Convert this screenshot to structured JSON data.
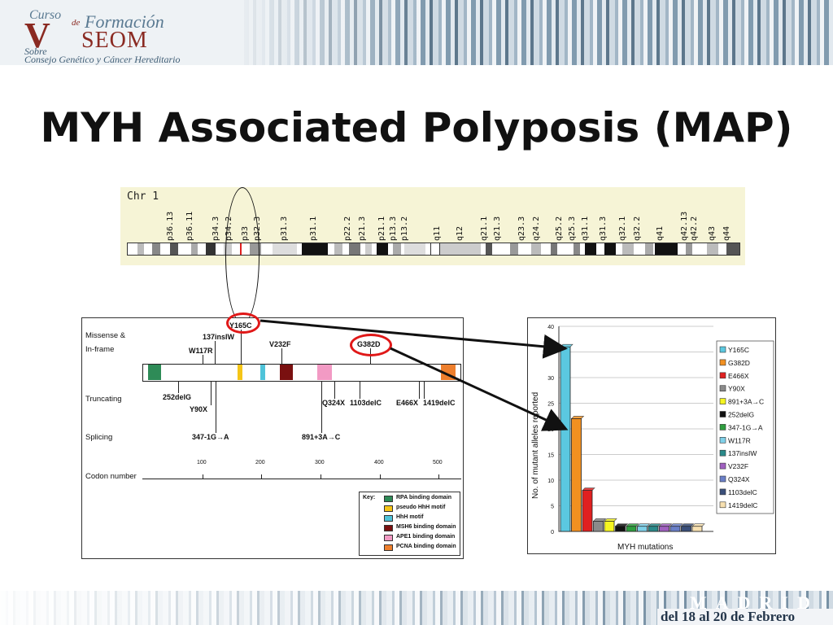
{
  "header": {
    "logo_curso": "Curso",
    "logo_de": "de",
    "logo_formacion": "Formación",
    "logo_seom": "SEOM",
    "logo_sobre": "Sobre",
    "logo_subtitle": "Consejo Genético y Cáncer Hereditario",
    "colors": {
      "logo_red": "#8a2a22",
      "logo_blue": "#5a7a92"
    }
  },
  "slide": {
    "title": "MYH Associated Polyposis (MAP)"
  },
  "chromosome": {
    "label": "Chr 1",
    "bands": [
      "p36.13",
      "p36.11",
      "p34.3",
      "p34.2",
      "p33",
      "p32.3",
      "p31.3",
      "p31.1",
      "p22.2",
      "p21.3",
      "p21.1",
      "p13.3",
      "p13.2",
      "q11",
      "q12",
      "q21.1",
      "q21.3",
      "q23.3",
      "q24.2",
      "q25.2",
      "q25.3",
      "q31.1",
      "q31.3",
      "q32.1",
      "q32.2",
      "q41",
      "q42.13",
      "q42.2",
      "q43",
      "q44"
    ]
  },
  "gene_map": {
    "row_labels": {
      "missense": "Missense &",
      "inframe": "In-frame",
      "truncating": "Truncating",
      "splicing": "Splicing",
      "codon": "Codon number"
    },
    "missense": [
      "Y165C",
      "137insIW",
      "W117R",
      "V232F",
      "G382D"
    ],
    "truncating": [
      "252delG",
      "Y90X",
      "Q324X",
      "1103delC",
      "E466X",
      "1419delC"
    ],
    "splicing": [
      "347-1G→A",
      "891+3A→C"
    ],
    "codon_ticks": [
      "100",
      "200",
      "300",
      "400",
      "500"
    ],
    "key_title": "Key:",
    "key": [
      {
        "label": "RPA binding domain",
        "color": "#2e8b57"
      },
      {
        "label": "pseudo HhH motif",
        "color": "#f5c518"
      },
      {
        "label": "HhH motif",
        "color": "#4fc3d9"
      },
      {
        "label": "MSH6 binding domain",
        "color": "#7a1010"
      },
      {
        "label": "APE1 binding domain",
        "color": "#f29ac4"
      },
      {
        "label": "PCNA binding domain",
        "color": "#ee7f2d"
      }
    ]
  },
  "chart_data": {
    "type": "bar",
    "categories": [
      "Y165C",
      "G382D",
      "E466X",
      "Y90X",
      "891+3A→C",
      "252delG",
      "347-1G→A",
      "W117R",
      "137insIW",
      "V232F",
      "Q324X",
      "1103delC",
      "1419delC"
    ],
    "values": [
      36,
      22,
      8,
      2,
      2,
      1,
      1,
      1,
      1,
      1,
      1,
      1,
      1
    ],
    "colors": [
      "#5bc8e0",
      "#f29020",
      "#e02020",
      "#8a8a8a",
      "#f5f520",
      "#111111",
      "#2e9e3e",
      "#7fd0e8",
      "#2a8a8a",
      "#a060c0",
      "#6a7fc8",
      "#3a4f7a",
      "#f7e0b0"
    ],
    "ylabel": "No. of mutant alleles reported",
    "xlabel": "MYH mutations",
    "yticks": [
      "0",
      "5",
      "10",
      "15",
      "20",
      "25",
      "30",
      "35",
      "40"
    ],
    "ylim": [
      0,
      40
    ]
  },
  "footer": {
    "city": "MADRID",
    "dates": "del 18 al 20 de Febrero"
  }
}
